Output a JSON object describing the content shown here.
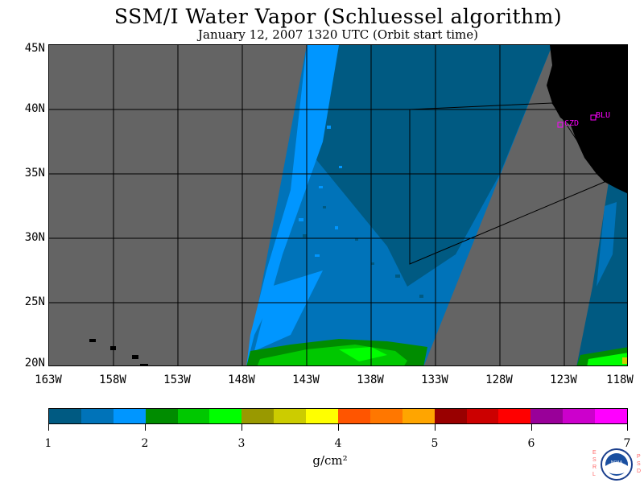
{
  "title": "SSM/I Water Vapor (Schluessel algorithm)",
  "subtitle": "January 12, 2007  1320 UTC  (Orbit start time)",
  "lat_labels": [
    "45N",
    "40N",
    "35N",
    "30N",
    "25N",
    "20N"
  ],
  "lon_labels": [
    "163W",
    "158W",
    "153W",
    "148W",
    "143W",
    "138W",
    "133W",
    "128W",
    "123W",
    "118W"
  ],
  "stations": [
    {
      "code": "CZD",
      "lon": -123.3,
      "lat": 38.6
    },
    {
      "code": "BLU",
      "lon": -120.8,
      "lat": 39.3
    }
  ],
  "colorbar": {
    "colors": [
      "#005a82",
      "#0073b9",
      "#0096ff",
      "#008c00",
      "#00c800",
      "#00ff00",
      "#999900",
      "#cccc00",
      "#ffff00",
      "#ff5500",
      "#ff7700",
      "#ffa500",
      "#990000",
      "#cc0000",
      "#ff0000",
      "#990099",
      "#cc00cc",
      "#ff00ff"
    ],
    "tick_labels": [
      "1",
      "2",
      "3",
      "4",
      "5",
      "6",
      "7"
    ],
    "unit": "g/cm²"
  },
  "logo": {
    "left_letters": "ESRL",
    "right_letters": "PSD",
    "text": "NOAA"
  },
  "colors": {
    "background_gray": "#646464",
    "land": "#000000",
    "station_marker": "#ff00ff"
  }
}
